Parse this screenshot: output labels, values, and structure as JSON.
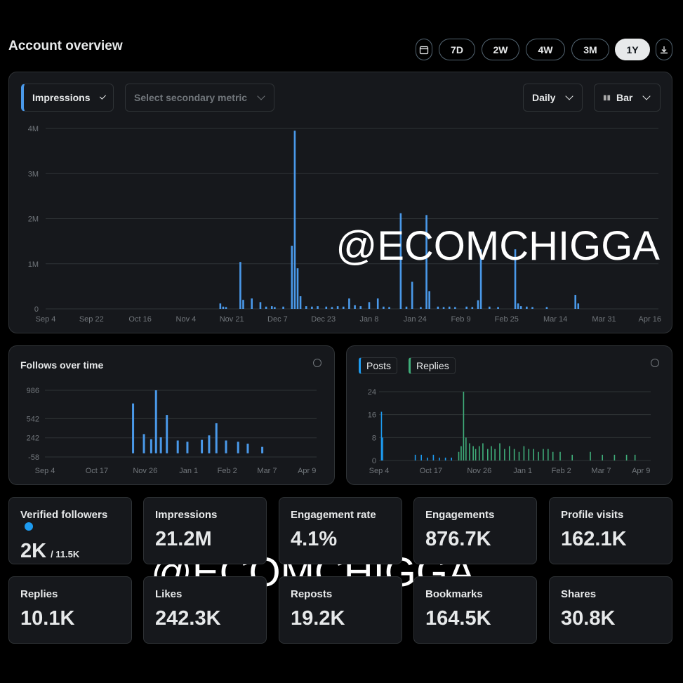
{
  "header": {
    "title": "Account overview",
    "ranges": [
      "7D",
      "2W",
      "4W",
      "3M",
      "1Y"
    ],
    "active_range": "1Y"
  },
  "controls": {
    "primary_metric": "Impressions",
    "secondary_metric": "Select secondary metric",
    "interval": "Daily",
    "chart_style": "Bar"
  },
  "chart_data": [
    {
      "type": "bar",
      "color": "#4a99e9",
      "x": [
        61,
        62,
        63,
        68,
        69,
        72,
        75,
        77,
        79,
        80,
        83,
        86,
        87,
        88,
        89,
        91,
        93,
        95,
        98,
        100,
        102,
        104,
        106,
        108,
        110,
        113,
        116,
        118,
        120,
        124,
        126,
        128,
        131,
        133,
        134,
        137,
        139,
        141,
        143,
        147,
        149,
        151,
        152,
        155,
        158,
        164,
        165,
        166,
        168,
        170,
        175,
        185,
        186
      ],
      "values": [
        0.12,
        0.05,
        0.04,
        1.04,
        0.2,
        0.23,
        0.15,
        0.05,
        0.06,
        0.04,
        0.05,
        1.4,
        3.95,
        0.9,
        0.28,
        0.06,
        0.05,
        0.06,
        0.05,
        0.04,
        0.06,
        0.05,
        0.23,
        0.08,
        0.06,
        0.15,
        0.23,
        0.05,
        0.04,
        2.12,
        0.05,
        0.6,
        0.04,
        2.08,
        0.39,
        0.05,
        0.04,
        0.05,
        0.04,
        0.05,
        0.04,
        0.19,
        1.32,
        0.05,
        0.04,
        1.32,
        0.12,
        0.06,
        0.05,
        0.04,
        0.04,
        0.31,
        0.12
      ],
      "xlim": [
        0,
        214
      ],
      "xticks": [
        {
          "value": 0,
          "label": "Sep 4"
        },
        {
          "value": 16,
          "label": "Sep 22"
        },
        {
          "value": 33,
          "label": "Oct 16"
        },
        {
          "value": 49,
          "label": "Nov 4"
        },
        {
          "value": 65,
          "label": "Nov 21"
        },
        {
          "value": 81,
          "label": "Dec 7"
        },
        {
          "value": 97,
          "label": "Dec 23"
        },
        {
          "value": 113,
          "label": "Jan 8"
        },
        {
          "value": 129,
          "label": "Jan 24"
        },
        {
          "value": 145,
          "label": "Feb 9"
        },
        {
          "value": 161,
          "label": "Feb 25"
        },
        {
          "value": 178,
          "label": "Mar 14"
        },
        {
          "value": 195,
          "label": "Mar 31"
        },
        {
          "value": 211,
          "label": "Apr 16"
        }
      ],
      "ylim": [
        0,
        4
      ],
      "yticks": [
        0,
        {
          "value": 1,
          "label": "1M"
        },
        {
          "value": 2,
          "label": "2M"
        },
        {
          "value": 3,
          "label": "3M"
        },
        {
          "value": 4,
          "label": "4M"
        }
      ],
      "grid": true
    },
    {
      "type": "bar",
      "title": "Follows over time",
      "color": "#4a99e9",
      "x": [
        73,
        82,
        88,
        92,
        96,
        101,
        110,
        118,
        130,
        136,
        142,
        150,
        160,
        168,
        180
      ],
      "values": [
        780,
        300,
        220,
        986,
        250,
        600,
        200,
        180,
        210,
        280,
        470,
        200,
        180,
        150,
        100
      ],
      "xlim": [
        0,
        225
      ],
      "xticks": [
        {
          "value": 0,
          "label": "Sep 4"
        },
        {
          "value": 43,
          "label": "Oct 17"
        },
        {
          "value": 83,
          "label": "Nov 26"
        },
        {
          "value": 119,
          "label": "Jan 1"
        },
        {
          "value": 151,
          "label": "Feb 2"
        },
        {
          "value": 184,
          "label": "Mar 7"
        },
        {
          "value": 217,
          "label": "Apr 9"
        }
      ],
      "ylim": [
        -58,
        986
      ],
      "yticks": [
        -58,
        242,
        542,
        986
      ],
      "grid": true
    },
    {
      "type": "bar",
      "series": [
        {
          "name": "Posts",
          "color": "#1d9bf0",
          "x": [
            2,
            3,
            30,
            35,
            40,
            45,
            50,
            55,
            60
          ],
          "values": [
            17,
            8,
            2,
            2,
            1,
            2,
            1,
            1,
            1
          ]
        },
        {
          "name": "Replies",
          "color": "#3fae7a",
          "x": [
            66,
            68,
            70,
            72,
            75,
            78,
            80,
            83,
            86,
            90,
            93,
            96,
            100,
            104,
            108,
            112,
            116,
            120,
            124,
            128,
            132,
            136,
            140,
            144,
            150,
            160,
            175,
            185,
            195,
            205,
            212
          ],
          "values": [
            3,
            5,
            24,
            8,
            6,
            5,
            4,
            5,
            6,
            4,
            5,
            4,
            6,
            4,
            5,
            4,
            3,
            5,
            4,
            4,
            3,
            4,
            4,
            3,
            3,
            2,
            3,
            2,
            2,
            2,
            2
          ]
        }
      ],
      "xlim": [
        0,
        225
      ],
      "xticks": [
        {
          "value": 0,
          "label": "Sep 4"
        },
        {
          "value": 43,
          "label": "Oct 17"
        },
        {
          "value": 83,
          "label": "Nov 26"
        },
        {
          "value": 119,
          "label": "Jan 1"
        },
        {
          "value": 151,
          "label": "Feb 2"
        },
        {
          "value": 184,
          "label": "Mar 7"
        },
        {
          "value": 217,
          "label": "Apr 9"
        }
      ],
      "ylim": [
        0,
        24
      ],
      "yticks": [
        0,
        8,
        16,
        24
      ],
      "grid": true
    }
  ],
  "cards": [
    {
      "label": "Verified followers",
      "value": "2K",
      "sub": "/ 11.5K"
    },
    {
      "label": "Impressions",
      "value": "21.2M"
    },
    {
      "label": "Engagement rate",
      "value": "4.1%"
    },
    {
      "label": "Engagements",
      "value": "876.7K"
    },
    {
      "label": "Profile visits",
      "value": "162.1K"
    },
    {
      "label": "Replies",
      "value": "10.1K"
    },
    {
      "label": "Likes",
      "value": "242.3K"
    },
    {
      "label": "Reposts",
      "value": "19.2K"
    },
    {
      "label": "Bookmarks",
      "value": "164.5K"
    },
    {
      "label": "Shares",
      "value": "30.8K"
    }
  ],
  "watermark": "@ECOMCHIGGA"
}
